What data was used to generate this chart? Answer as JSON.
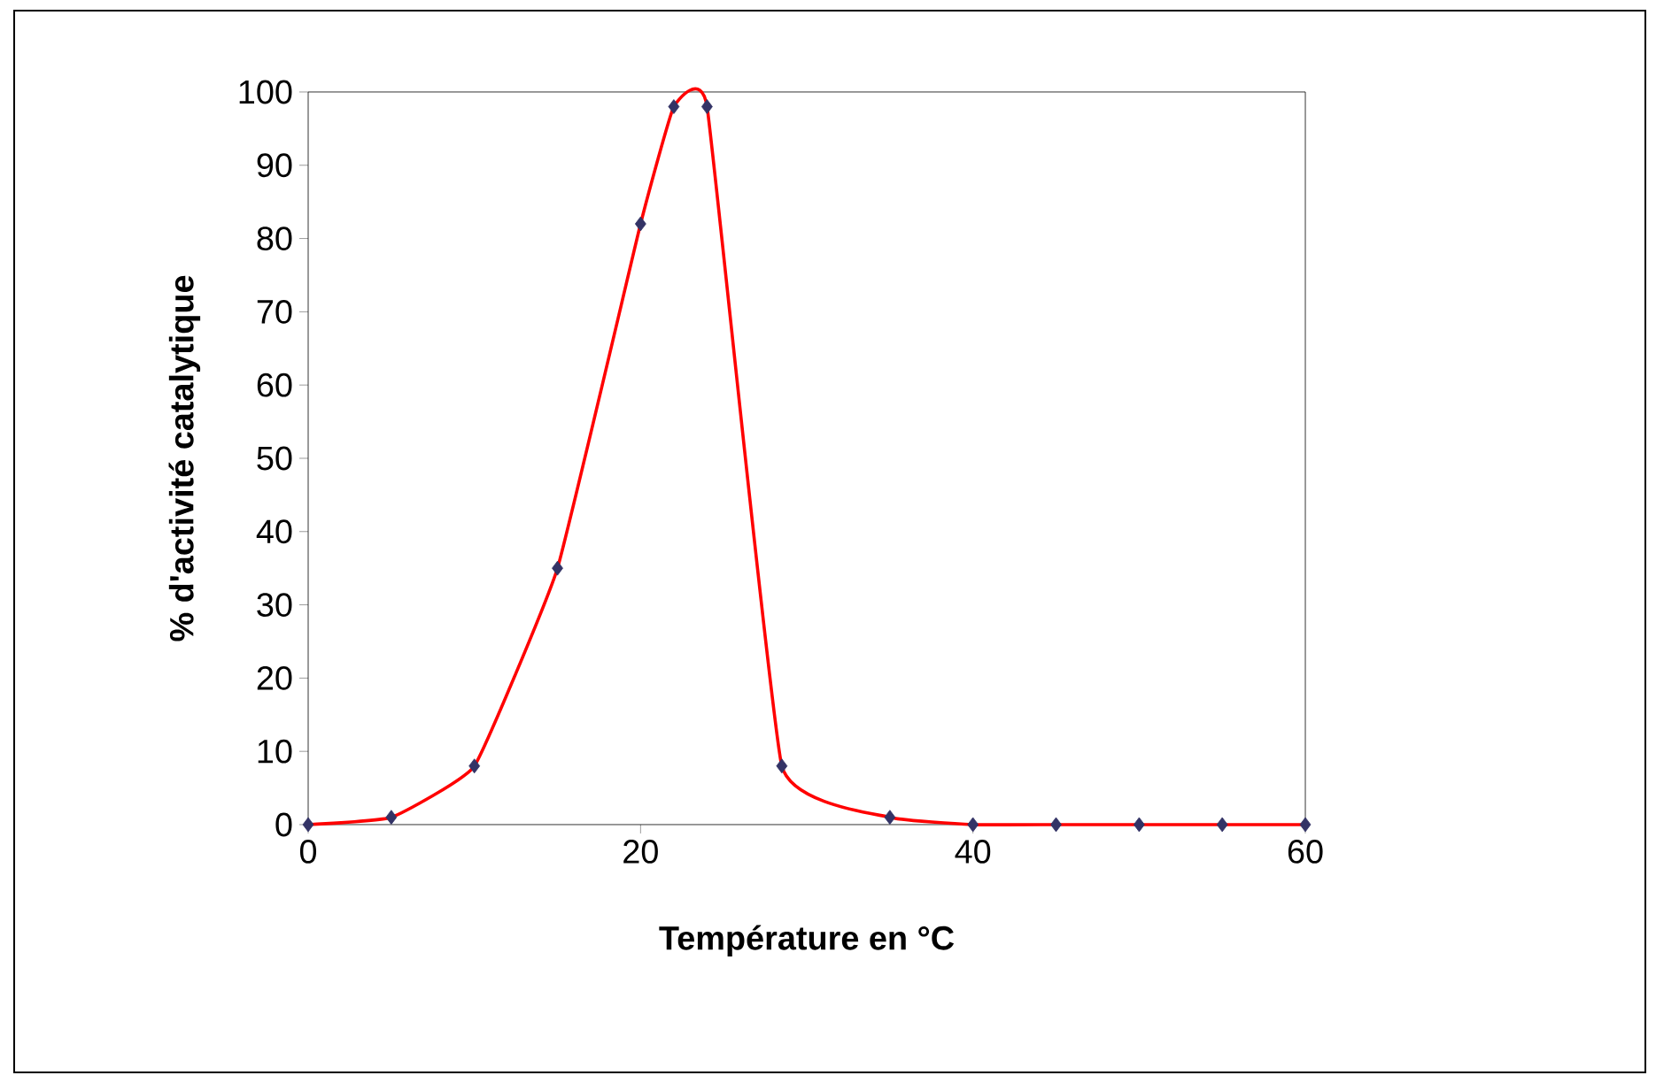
{
  "chart_data": {
    "type": "line",
    "xlabel": "Température en °C",
    "ylabel": "% d'activité catalytique",
    "x": [
      0,
      5,
      10,
      15,
      20,
      22,
      24,
      28.5,
      35,
      40,
      45,
      50,
      55,
      60
    ],
    "series": [
      {
        "color": "#ff0000",
        "marker": "none",
        "values": [
          0,
          1,
          8,
          35,
          82,
          98,
          98,
          8,
          1,
          0,
          0,
          0,
          0,
          0
        ]
      },
      {
        "type": "scatter",
        "color": "#333366",
        "marker": "diamond",
        "values": [
          0,
          1,
          8,
          35,
          82,
          98,
          98,
          8,
          1,
          0,
          0,
          0,
          0,
          0
        ]
      }
    ],
    "xlim": [
      0,
      60
    ],
    "xticks": [
      0,
      20,
      40,
      60
    ],
    "ylim": [
      0,
      100
    ],
    "yticks": [
      0,
      10,
      20,
      30,
      40,
      50,
      60,
      70,
      80,
      90,
      100
    ]
  }
}
